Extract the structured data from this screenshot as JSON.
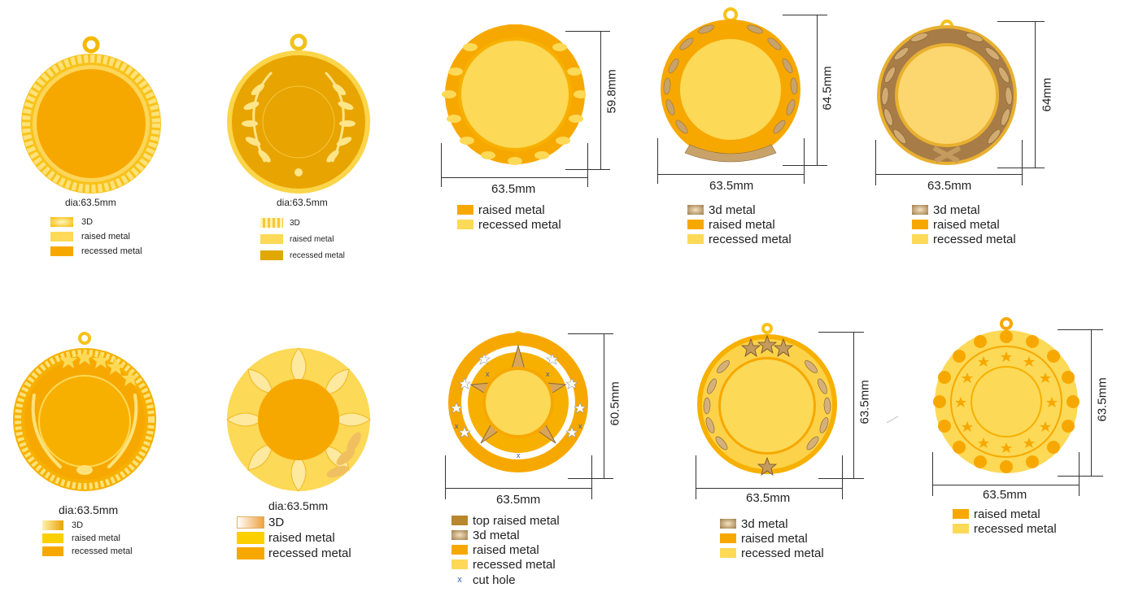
{
  "medals": [
    {
      "caption": "dia:63.5mm",
      "legend": [
        "3D",
        "raised metal",
        "recessed metal"
      ]
    },
    {
      "caption": "dia:63.5mm",
      "legend": [
        "3D",
        "raised metal",
        "recessed metal"
      ]
    },
    {
      "width_label": "63.5mm",
      "height_label": "59.8mm",
      "legend": [
        "raised metal",
        "recessed metal"
      ]
    },
    {
      "width_label": "63.5mm",
      "height_label": "64.5mm",
      "legend": [
        "3d metal",
        "raised metal",
        "recessed metal"
      ]
    },
    {
      "width_label": "63.5mm",
      "height_label": "64mm",
      "legend": [
        "3d metal",
        "raised metal",
        "recessed metal"
      ]
    },
    {
      "caption": "dia:63.5mm",
      "legend": [
        "3D",
        "raised metal",
        "recessed metal"
      ]
    },
    {
      "caption": "dia:63.5mm",
      "legend": [
        "3D",
        "raised metal",
        "recessed metal"
      ]
    },
    {
      "width_label": "63.5mm",
      "height_label": "60.5mm",
      "legend": [
        "top raised metal",
        "3d metal",
        "raised metal",
        "recessed metal",
        "cut hole"
      ]
    },
    {
      "width_label": "63.5mm",
      "height_label": "63.5mm",
      "legend": [
        "3d metal",
        "raised metal",
        "recessed metal"
      ]
    },
    {
      "width_label": "63.5mm",
      "height_label": "63.5mm",
      "legend": [
        "raised metal",
        "recessed metal"
      ]
    }
  ],
  "colors": {
    "recessed_orange": "#f7a800",
    "raised_yellow": "#fcd957",
    "gold_dark": "#e8a400",
    "bronze": "#b08a55",
    "deep_gold": "#e0a800",
    "light_gold": "#ffe27a"
  }
}
